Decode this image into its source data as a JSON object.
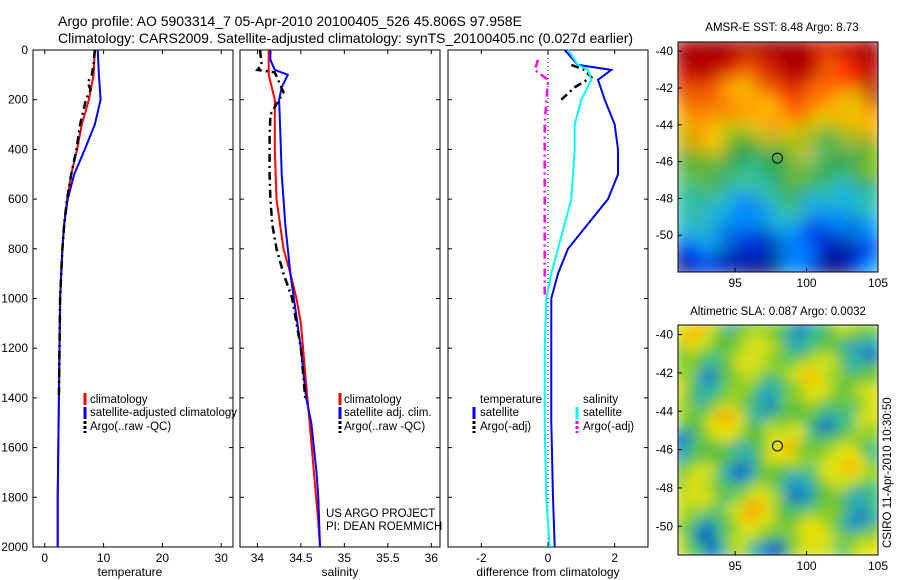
{
  "header": {
    "line1": "Argo profile: AO 5903314_7 05-Apr-2010 20100405_526 45.806S 97.958E",
    "line2": "Climatology: CARS2009. Satellite-adjusted climatology: synTS_20100405.nc (0.027d earlier)"
  },
  "credits": {
    "project": "US ARGO PROJECT",
    "pi": "PI: DEAN ROEMMICH",
    "stamp": "CSIRO 11-Apr-2010 10:30:50"
  },
  "colors": {
    "climatology": "#ff0000",
    "satellite": "#0000ff",
    "argo": "#000000",
    "sat_diff_sal": "#00ffff",
    "argo_diff_sal": "#ff00ff"
  },
  "chart_data": [
    {
      "type": "line",
      "xlabel": "temperature",
      "x_ticks": [
        0,
        10,
        20,
        30
      ],
      "xlim": [
        -2,
        32
      ],
      "ylim": [
        2000,
        0
      ],
      "y_ticks": [
        0,
        200,
        400,
        600,
        800,
        1000,
        1200,
        1400,
        1600,
        1800,
        2000
      ],
      "legend": [
        "climatology",
        "satellite-adjusted climatology",
        "Argo(..raw -QC)"
      ],
      "series": [
        {
          "name": "climatology",
          "color": "#ff0000",
          "points": [
            [
              8.5,
              0
            ],
            [
              8.3,
              100
            ],
            [
              7.5,
              200
            ],
            [
              6.3,
              300
            ],
            [
              5.5,
              400
            ],
            [
              4.5,
              500
            ],
            [
              3.8,
              600
            ],
            [
              3.3,
              700
            ],
            [
              3.0,
              800
            ],
            [
              2.8,
              900
            ],
            [
              2.6,
              1000
            ],
            [
              2.5,
              1200
            ],
            [
              2.4,
              1400
            ],
            [
              2.3,
              1600
            ],
            [
              2.2,
              1800
            ],
            [
              2.2,
              2000
            ]
          ]
        },
        {
          "name": "satellite-adjusted climatology",
          "color": "#0000ff",
          "points": [
            [
              9.0,
              0
            ],
            [
              9.2,
              100
            ],
            [
              9.5,
              200
            ],
            [
              8.5,
              300
            ],
            [
              6.8,
              400
            ],
            [
              5.0,
              500
            ],
            [
              3.9,
              600
            ],
            [
              3.3,
              700
            ],
            [
              3.0,
              800
            ],
            [
              2.8,
              900
            ],
            [
              2.6,
              1000
            ],
            [
              2.5,
              1200
            ],
            [
              2.4,
              1400
            ],
            [
              2.3,
              1600
            ],
            [
              2.2,
              1800
            ],
            [
              2.2,
              2000
            ]
          ]
        },
        {
          "name": "Argo(..raw -QC)",
          "color": "#000000",
          "dashed": true,
          "points": [
            [
              8.5,
              0
            ],
            [
              8.3,
              60
            ],
            [
              8.0,
              100
            ],
            [
              7.3,
              130
            ],
            [
              7.8,
              160
            ],
            [
              7.0,
              200
            ],
            [
              6.0,
              300
            ],
            [
              5.4,
              400
            ],
            [
              4.5,
              500
            ],
            [
              3.8,
              600
            ],
            [
              3.3,
              700
            ],
            [
              3.0,
              800
            ],
            [
              2.8,
              900
            ],
            [
              2.6,
              1000
            ],
            [
              2.5,
              1200
            ],
            [
              2.4,
              1400
            ]
          ]
        }
      ]
    },
    {
      "type": "line",
      "xlabel": "salinity",
      "x_ticks": [
        34,
        34.5,
        35,
        35.5,
        36
      ],
      "xlim": [
        33.8,
        36.1
      ],
      "ylim": [
        2000,
        0
      ],
      "legend": [
        "climatology",
        "satellite adj. clim.",
        "Argo(..raw -QC)"
      ],
      "series": [
        {
          "name": "climatology",
          "color": "#ff0000",
          "points": [
            [
              34.13,
              0
            ],
            [
              34.13,
              100
            ],
            [
              34.2,
              200
            ],
            [
              34.2,
              400
            ],
            [
              34.22,
              600
            ],
            [
              34.3,
              800
            ],
            [
              34.38,
              900
            ],
            [
              34.45,
              1000
            ],
            [
              34.5,
              1100
            ],
            [
              34.55,
              1300
            ],
            [
              34.6,
              1500
            ],
            [
              34.65,
              1700
            ],
            [
              34.7,
              1900
            ],
            [
              34.72,
              2000
            ]
          ]
        },
        {
          "name": "satellite adj. clim.",
          "color": "#0000ff",
          "points": [
            [
              34.15,
              0
            ],
            [
              34.15,
              40
            ],
            [
              34.2,
              80
            ],
            [
              34.35,
              100
            ],
            [
              34.28,
              150
            ],
            [
              34.25,
              200
            ],
            [
              34.26,
              300
            ],
            [
              34.27,
              400
            ],
            [
              34.28,
              500
            ],
            [
              34.3,
              600
            ],
            [
              34.32,
              700
            ],
            [
              34.35,
              800
            ],
            [
              34.38,
              900
            ],
            [
              34.42,
              1000
            ],
            [
              34.5,
              1200
            ],
            [
              34.56,
              1400
            ],
            [
              34.62,
              1500
            ],
            [
              34.68,
              1700
            ],
            [
              34.7,
              1800
            ],
            [
              34.72,
              2000
            ]
          ]
        },
        {
          "name": "Argo(..raw -QC)",
          "color": "#000000",
          "dashed": true,
          "points": [
            [
              34.03,
              0
            ],
            [
              34.05,
              60
            ],
            [
              34.0,
              80
            ],
            [
              34.2,
              90
            ],
            [
              34.25,
              130
            ],
            [
              34.3,
              170
            ],
            [
              34.25,
              200
            ],
            [
              34.15,
              260
            ],
            [
              34.14,
              350
            ],
            [
              34.14,
              500
            ],
            [
              34.15,
              600
            ],
            [
              34.17,
              700
            ],
            [
              34.22,
              800
            ],
            [
              34.3,
              900
            ],
            [
              34.4,
              1000
            ],
            [
              34.5,
              1200
            ],
            [
              34.55,
              1400
            ]
          ]
        }
      ]
    },
    {
      "type": "line",
      "xlabel": "difference from climatology",
      "x_ticks": [
        -2,
        0,
        2
      ],
      "xlim": [
        -3,
        3
      ],
      "ylim": [
        2000,
        0
      ],
      "legend_headers": [
        "temperature",
        "salinity"
      ],
      "legend": [
        "satellite",
        "Argo(-adj)",
        "satellite",
        "Argo(-adj)"
      ],
      "series": [
        {
          "name": "temperature satellite",
          "color": "#0000ff",
          "points": [
            [
              0.5,
              0
            ],
            [
              0.9,
              60
            ],
            [
              1.9,
              80
            ],
            [
              1.5,
              120
            ],
            [
              1.7,
              200
            ],
            [
              2.0,
              300
            ],
            [
              2.1,
              400
            ],
            [
              2.1,
              500
            ],
            [
              1.8,
              600
            ],
            [
              1.2,
              700
            ],
            [
              0.6,
              800
            ],
            [
              0.3,
              900
            ],
            [
              0.1,
              1000
            ],
            [
              0.1,
              1200
            ],
            [
              0.1,
              1500
            ],
            [
              0.15,
              1800
            ],
            [
              0.2,
              2000
            ]
          ]
        },
        {
          "name": "temperature Argo(-adj)",
          "color": "#000000",
          "dashed": true,
          "points": [
            [
              0.7,
              60
            ],
            [
              1.1,
              80
            ],
            [
              1.3,
              110
            ],
            [
              0.8,
              150
            ],
            [
              0.4,
              200
            ]
          ]
        },
        {
          "name": "salinity satellite",
          "color": "#00ffff",
          "points": [
            [
              0.6,
              0
            ],
            [
              0.9,
              60
            ],
            [
              1.2,
              80
            ],
            [
              1.3,
              120
            ],
            [
              1.0,
              200
            ],
            [
              0.8,
              300
            ],
            [
              0.8,
              400
            ],
            [
              0.75,
              500
            ],
            [
              0.7,
              600
            ],
            [
              0.5,
              700
            ],
            [
              0.3,
              800
            ],
            [
              0.1,
              900
            ],
            [
              -0.05,
              1000
            ],
            [
              -0.1,
              1200
            ],
            [
              -0.1,
              1500
            ],
            [
              -0.05,
              1800
            ],
            [
              0.05,
              2000
            ]
          ]
        },
        {
          "name": "salinity Argo(-adj)",
          "color": "#ff00ff",
          "dashed": true,
          "points": [
            [
              -0.3,
              40
            ],
            [
              -0.4,
              80
            ],
            [
              0.0,
              120
            ],
            [
              -0.1,
              300
            ],
            [
              -0.1,
              500
            ],
            [
              -0.1,
              800
            ],
            [
              -0.1,
              1000
            ]
          ]
        }
      ]
    },
    {
      "type": "heatmap",
      "title": "AMSR-E SST: 8.48 Argo: 8.73",
      "x_ticks": [
        95,
        100,
        105
      ],
      "y_ticks": [
        -40,
        -42,
        -44,
        -46,
        -48,
        -50
      ],
      "xlim": [
        91,
        105
      ],
      "ylim": [
        -52,
        -39.5
      ],
      "marker": [
        97.96,
        -45.81
      ]
    },
    {
      "type": "heatmap",
      "title": "Altimetric SLA: 0.087 Argo: 0.0032",
      "x_ticks": [
        95,
        100,
        105
      ],
      "y_ticks": [
        -40,
        -42,
        -44,
        -46,
        -48,
        -50
      ],
      "xlim": [
        91,
        105
      ],
      "ylim": [
        -51.5,
        -39.5
      ],
      "marker": [
        97.96,
        -45.81
      ]
    }
  ]
}
